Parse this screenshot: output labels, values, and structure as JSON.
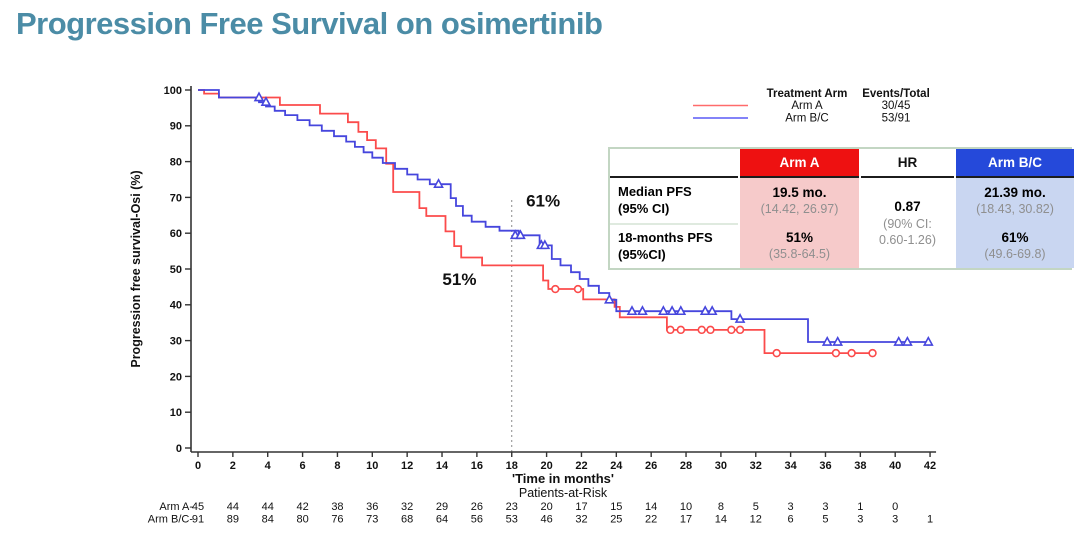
{
  "title": "Progression Free Survival on osimertinib",
  "colors": {
    "title": "#4b8ca6",
    "arm_a": "#fb4b4b",
    "arm_bc": "#4646dd",
    "legend_arm_a": "#ff6b6b",
    "legend_arm_bc": "#5a5af5",
    "annotation_a": "#e8232e",
    "annotation_bc": "#2f6fe8",
    "axis": "#333333",
    "header_a_bg": "#ee1111",
    "header_bc_bg": "#2549da",
    "body_a_bg": "#f6caca",
    "body_bc_bg": "#c9d6f1",
    "table_border": "#c3d6c3"
  },
  "legend": {
    "col1_header": "Treatment Arm",
    "col2_header": "Events/Total",
    "items": [
      {
        "label": "Arm A",
        "events": "30/45"
      },
      {
        "label": "Arm B/C",
        "events": "53/91"
      }
    ]
  },
  "stats_table": {
    "headers": {
      "arm_a": "Arm A",
      "hr": "HR",
      "arm_bc": "Arm B/C"
    },
    "rows": [
      {
        "label1": "Median PFS",
        "label2": "(95% CI)",
        "arm_a": "19.5 mo.",
        "arm_a_ci": "(14.42, 26.97)",
        "arm_bc": "21.39 mo.",
        "arm_bc_ci": "(18.43, 30.82)"
      },
      {
        "label1": "18-months PFS",
        "label2": "(95%CI)",
        "arm_a": "51%",
        "arm_a_ci": "(35.8-64.5)",
        "arm_bc": "61%",
        "arm_bc_ci": "(49.6-69.8)"
      }
    ],
    "hr": {
      "value": "0.87",
      "ci1": "(90% CI:",
      "ci2": "0.60-1.26)"
    }
  },
  "chart_data": {
    "type": "line",
    "subtype": "kaplan-meier-step",
    "title": "",
    "xlabel": "'Time in months'",
    "ylabel": "Progression free survival-Osi (%)",
    "xlim": [
      0,
      42
    ],
    "ylim": [
      0,
      100
    ],
    "xticks": [
      0,
      2,
      4,
      6,
      8,
      10,
      12,
      14,
      16,
      18,
      20,
      22,
      24,
      26,
      28,
      30,
      32,
      34,
      36,
      38,
      40,
      42
    ],
    "yticks": [
      0,
      10,
      20,
      30,
      40,
      50,
      60,
      70,
      80,
      90,
      100
    ],
    "grid": false,
    "reference_line_x": 18,
    "reference_line_top_y": 70,
    "series": [
      {
        "name": "Arm A",
        "events_total": "30/45",
        "censor_symbol": "circle",
        "steps": [
          [
            0,
            100
          ],
          [
            0.35,
            99
          ],
          [
            1.2,
            97.9
          ],
          [
            4.7,
            95.8
          ],
          [
            7.0,
            93.4
          ],
          [
            8.6,
            91.0
          ],
          [
            9.2,
            88.3
          ],
          [
            9.7,
            86.0
          ],
          [
            10.2,
            83.7
          ],
          [
            10.8,
            79.4
          ],
          [
            11.2,
            71.5
          ],
          [
            12.7,
            67.0
          ],
          [
            13.1,
            64.8
          ],
          [
            14.2,
            60.5
          ],
          [
            14.7,
            56.4
          ],
          [
            15.1,
            53.2
          ],
          [
            16.3,
            51.0
          ],
          [
            19.8,
            46.8
          ],
          [
            20.1,
            44.4
          ],
          [
            22.1,
            41.5
          ],
          [
            23.9,
            39.4
          ],
          [
            24.2,
            36.5
          ],
          [
            26.9,
            33.0
          ],
          [
            32.5,
            26.5
          ],
          [
            38.7,
            26.5
          ]
        ],
        "censors": [
          [
            20.5,
            44.4
          ],
          [
            21.8,
            44.4
          ],
          [
            27.1,
            33.0
          ],
          [
            27.7,
            33.0
          ],
          [
            28.9,
            33.0
          ],
          [
            29.4,
            33.0
          ],
          [
            30.6,
            33.0
          ],
          [
            31.1,
            33.0
          ],
          [
            33.2,
            26.5
          ],
          [
            36.6,
            26.5
          ],
          [
            37.5,
            26.5
          ],
          [
            38.7,
            26.5
          ]
        ]
      },
      {
        "name": "Arm B/C",
        "events_total": "53/91",
        "censor_symbol": "triangle",
        "steps": [
          [
            0,
            100
          ],
          [
            1.2,
            97.9
          ],
          [
            3.5,
            96.6
          ],
          [
            3.9,
            95.4
          ],
          [
            4.4,
            94.2
          ],
          [
            5.0,
            93.0
          ],
          [
            5.7,
            91.6
          ],
          [
            6.4,
            90.1
          ],
          [
            7.1,
            88.6
          ],
          [
            7.8,
            87.1
          ],
          [
            8.5,
            85.6
          ],
          [
            9.0,
            84.1
          ],
          [
            9.5,
            82.6
          ],
          [
            10.0,
            81.1
          ],
          [
            10.6,
            79.6
          ],
          [
            11.3,
            78.0
          ],
          [
            12.0,
            76.4
          ],
          [
            12.6,
            75.0
          ],
          [
            13.3,
            73.7
          ],
          [
            14.5,
            69.8
          ],
          [
            14.8,
            67.6
          ],
          [
            15.2,
            64.9
          ],
          [
            15.7,
            63.2
          ],
          [
            16.5,
            61.8
          ],
          [
            17.3,
            60.7
          ],
          [
            18.4,
            59.4
          ],
          [
            19.6,
            56.6
          ],
          [
            20.3,
            52.8
          ],
          [
            20.8,
            51.0
          ],
          [
            21.4,
            49.1
          ],
          [
            21.9,
            47.2
          ],
          [
            22.4,
            45.3
          ],
          [
            23.0,
            43.3
          ],
          [
            23.6,
            41.4
          ],
          [
            24.0,
            38.2
          ],
          [
            30.6,
            36.0
          ],
          [
            35.0,
            29.6
          ],
          [
            42,
            29.6
          ]
        ],
        "censors": [
          [
            3.5,
            97.9
          ],
          [
            3.9,
            96.6
          ],
          [
            13.8,
            73.7
          ],
          [
            18.2,
            59.4
          ],
          [
            18.5,
            59.4
          ],
          [
            19.7,
            56.6
          ],
          [
            19.9,
            56.6
          ],
          [
            23.6,
            41.4
          ],
          [
            24.9,
            38.2
          ],
          [
            25.5,
            38.2
          ],
          [
            26.7,
            38.2
          ],
          [
            27.2,
            38.2
          ],
          [
            27.7,
            38.2
          ],
          [
            29.1,
            38.2
          ],
          [
            29.5,
            38.2
          ],
          [
            31.1,
            36.0
          ],
          [
            36.1,
            29.6
          ],
          [
            36.7,
            29.6
          ],
          [
            40.2,
            29.6
          ],
          [
            40.7,
            29.6
          ],
          [
            41.9,
            29.6
          ]
        ]
      }
    ],
    "annotations": [
      {
        "text": "61%",
        "x": 19.8,
        "y": 67.5,
        "series": "Arm B/C"
      },
      {
        "text": "51%",
        "x": 15.0,
        "y": 45.5,
        "series": "Arm A"
      }
    ]
  },
  "risk_table": {
    "title": "Patients-at-Risk",
    "time_step": 2,
    "rows": [
      {
        "label": "Arm A-",
        "counts": [
          45,
          44,
          44,
          42,
          38,
          36,
          32,
          29,
          26,
          23,
          20,
          17,
          15,
          14,
          10,
          8,
          5,
          3,
          3,
          1,
          0
        ]
      },
      {
        "label": "Arm B/C-",
        "counts": [
          91,
          89,
          84,
          80,
          76,
          73,
          68,
          64,
          56,
          53,
          46,
          32,
          25,
          22,
          17,
          14,
          12,
          6,
          5,
          3,
          3,
          1
        ]
      }
    ]
  }
}
